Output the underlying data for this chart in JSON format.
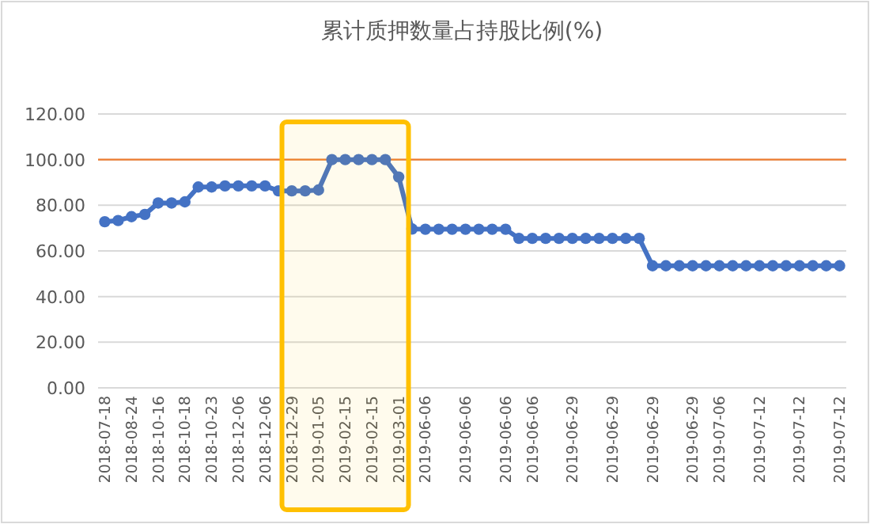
{
  "chart_data": {
    "type": "line",
    "title": "累计质押数量占持股比例(%)",
    "categories": [
      "2018-07-18",
      null,
      "2018-08-24",
      null,
      "2018-10-16",
      null,
      "2018-10-18",
      null,
      "2018-10-23",
      null,
      "2018-12-06",
      null,
      "2018-12-06",
      null,
      "2018-12-29",
      null,
      "2019-01-05",
      null,
      "2019-02-15",
      null,
      "2019-02-15",
      null,
      "2019-03-01",
      null,
      "2019-06-06",
      null,
      null,
      "2019-06-06",
      null,
      null,
      "2019-06-06",
      null,
      "2019-06-06",
      null,
      null,
      "2019-06-29",
      null,
      null,
      "2019-06-29",
      null,
      null,
      "2019-06-29",
      null,
      null,
      "2019-06-29",
      null,
      "2019-07-06",
      null,
      null,
      "2019-07-12",
      null,
      null,
      "2019-07-12",
      null,
      null,
      "2019-07-12"
    ],
    "series": [
      {
        "color": "#4472c4",
        "values": [
          72.8,
          73.3,
          75,
          76,
          81,
          81,
          81.5,
          88,
          88,
          88.5,
          88.5,
          88.5,
          88.5,
          86.3,
          86.3,
          86.3,
          86.7,
          100,
          100,
          100,
          100,
          100,
          92.4,
          69.6,
          69.5,
          69.5,
          69.5,
          69.5,
          69.5,
          69.5,
          69.5,
          65.5,
          65.5,
          65.5,
          65.5,
          65.5,
          65.5,
          65.5,
          65.5,
          65.5,
          65.5,
          53.5,
          53.5,
          53.5,
          53.5,
          53.5,
          53.5,
          53.5,
          53.5,
          53.5,
          53.5,
          53.5,
          53.5,
          53.5,
          53.5,
          53.5
        ]
      }
    ],
    "ylim": [
      0,
      120
    ],
    "yticks": [
      {
        "value": 0,
        "label": "0.00"
      },
      {
        "value": 20,
        "label": "20.00"
      },
      {
        "value": 40,
        "label": "40.00"
      },
      {
        "value": 60,
        "label": "60.00"
      },
      {
        "value": 80,
        "label": "80.00"
      },
      {
        "value": 100,
        "label": "100.00"
      },
      {
        "value": 120,
        "label": "120.00"
      }
    ],
    "grid": "y",
    "marker": "circle",
    "line_style": "solid",
    "ref_lines": [
      {
        "axis": "y",
        "value": 100,
        "color": "#ed7d31"
      }
    ],
    "bands": [
      {
        "axis": "x",
        "from": "2018-12-29",
        "to": "2019-03-01",
        "color": "#ffc000"
      }
    ]
  }
}
